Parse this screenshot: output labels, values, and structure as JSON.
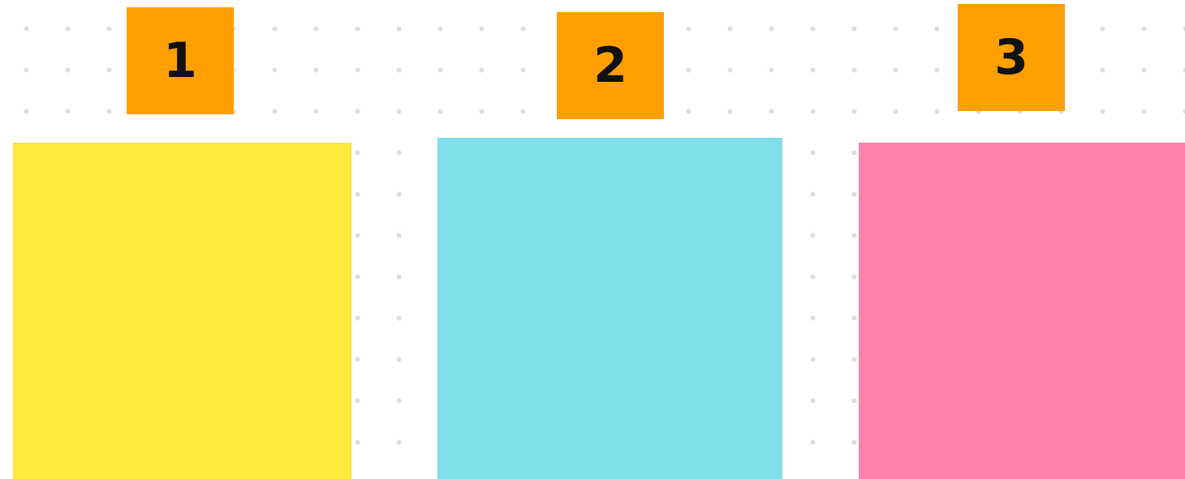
{
  "notes": [
    {
      "label": "1"
    },
    {
      "label": "2"
    },
    {
      "label": "3"
    }
  ]
}
